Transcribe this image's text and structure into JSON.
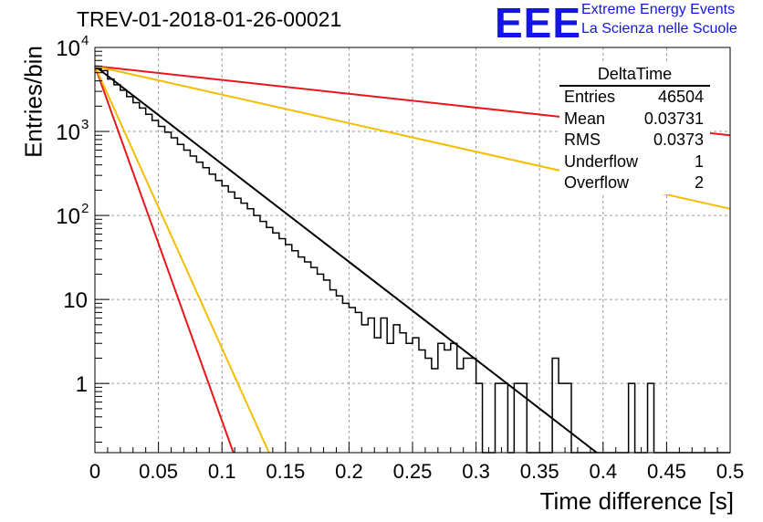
{
  "title": "TREV-01-2018-01-26-00021",
  "logo": {
    "mark": "EEE",
    "line1": "Extreme Energy Events",
    "line2": "La Scienza nelle Scuole",
    "color": "#1414e6"
  },
  "stats_box": {
    "title": "DeltaTime",
    "rows": [
      {
        "key": "Entries",
        "value": "46504"
      },
      {
        "key": "Mean",
        "value": "0.03731"
      },
      {
        "key": "RMS",
        "value": "0.0373"
      },
      {
        "key": "Underflow",
        "value": "1"
      },
      {
        "key": "Overflow",
        "value": "2"
      }
    ]
  },
  "chart_data": {
    "type": "line",
    "xlabel": "Time difference [s]",
    "ylabel": "Entries/bin",
    "xlim": [
      0,
      0.5
    ],
    "ylim": [
      0.15,
      10000
    ],
    "yscale": "log",
    "grid": true,
    "x_ticks": [
      "0",
      "0.05",
      "0.1",
      "0.15",
      "0.2",
      "0.25",
      "0.3",
      "0.35",
      "0.4",
      "0.45",
      "0.5"
    ],
    "y_ticks": [
      {
        "value": 1,
        "label": "1"
      },
      {
        "value": 10,
        "label": "10"
      },
      {
        "value": 100,
        "label": "10",
        "exp": "2"
      },
      {
        "value": 1000,
        "label": "10",
        "exp": "3"
      },
      {
        "value": 10000,
        "label": "10",
        "exp": "4"
      }
    ],
    "histogram": {
      "color": "#000000",
      "bin_width": 0.005,
      "bins_low_x": [
        0,
        0.005,
        0.01,
        0.015,
        0.02,
        0.025,
        0.03,
        0.035,
        0.04,
        0.045,
        0.05,
        0.055,
        0.06,
        0.065,
        0.07,
        0.075,
        0.08,
        0.085,
        0.09,
        0.095,
        0.1,
        0.105,
        0.11,
        0.115,
        0.12,
        0.125,
        0.13,
        0.135,
        0.14,
        0.145,
        0.15,
        0.155,
        0.16,
        0.165,
        0.17,
        0.175,
        0.18,
        0.185,
        0.19,
        0.195,
        0.2,
        0.205,
        0.21,
        0.215,
        0.22,
        0.225,
        0.23,
        0.235,
        0.24,
        0.245,
        0.25,
        0.255,
        0.26,
        0.265,
        0.27,
        0.275,
        0.28,
        0.285,
        0.29,
        0.295,
        0.3,
        0.305,
        0.31,
        0.315,
        0.32,
        0.325,
        0.33,
        0.335,
        0.34,
        0.345,
        0.35,
        0.355,
        0.36,
        0.365,
        0.37,
        0.375,
        0.38,
        0.385,
        0.39,
        0.395,
        0.4,
        0.405,
        0.41,
        0.415,
        0.42,
        0.425,
        0.43,
        0.435,
        0.44,
        0.445,
        0.45,
        0.455,
        0.46,
        0.465,
        0.47,
        0.475,
        0.48,
        0.485,
        0.49,
        0.495
      ],
      "counts": [
        5600,
        5300,
        4200,
        3600,
        3100,
        2600,
        2200,
        1900,
        1600,
        1350,
        1150,
        980,
        840,
        700,
        600,
        510,
        430,
        370,
        310,
        260,
        225,
        190,
        160,
        140,
        120,
        100,
        85,
        72,
        62,
        53,
        45,
        38,
        32,
        28,
        24,
        20,
        17,
        13,
        11,
        9,
        8,
        7,
        5,
        6,
        3.5,
        6,
        3,
        5,
        4,
        3,
        3.5,
        2.5,
        2,
        1.5,
        3,
        2.5,
        3,
        1.5,
        2,
        2,
        1,
        0,
        0,
        1,
        1,
        0,
        1,
        1,
        0,
        0,
        0,
        0,
        2,
        1,
        1,
        0,
        0,
        0,
        0,
        0,
        0,
        0,
        0,
        0,
        1,
        0,
        0,
        1,
        0,
        0,
        0,
        0,
        0,
        0,
        0,
        0,
        0,
        0,
        0,
        0
      ]
    },
    "fits": [
      {
        "color": "#000000",
        "x0": 0,
        "y0": 6000,
        "x1": 0.395,
        "y1": 0.15
      },
      {
        "color": "#e8171c",
        "x0": 0,
        "y0": 6000,
        "x1": 0.5,
        "y1": 900
      },
      {
        "color": "#f5bd00",
        "x0": 0,
        "y0": 6000,
        "x1": 0.5,
        "y1": 120
      },
      {
        "color": "#e8171c",
        "x0": 0,
        "y0": 6000,
        "x1": 0.109,
        "y1": 0.15
      },
      {
        "color": "#f5bd00",
        "x0": 0,
        "y0": 6000,
        "x1": 0.137,
        "y1": 0.15
      }
    ]
  }
}
